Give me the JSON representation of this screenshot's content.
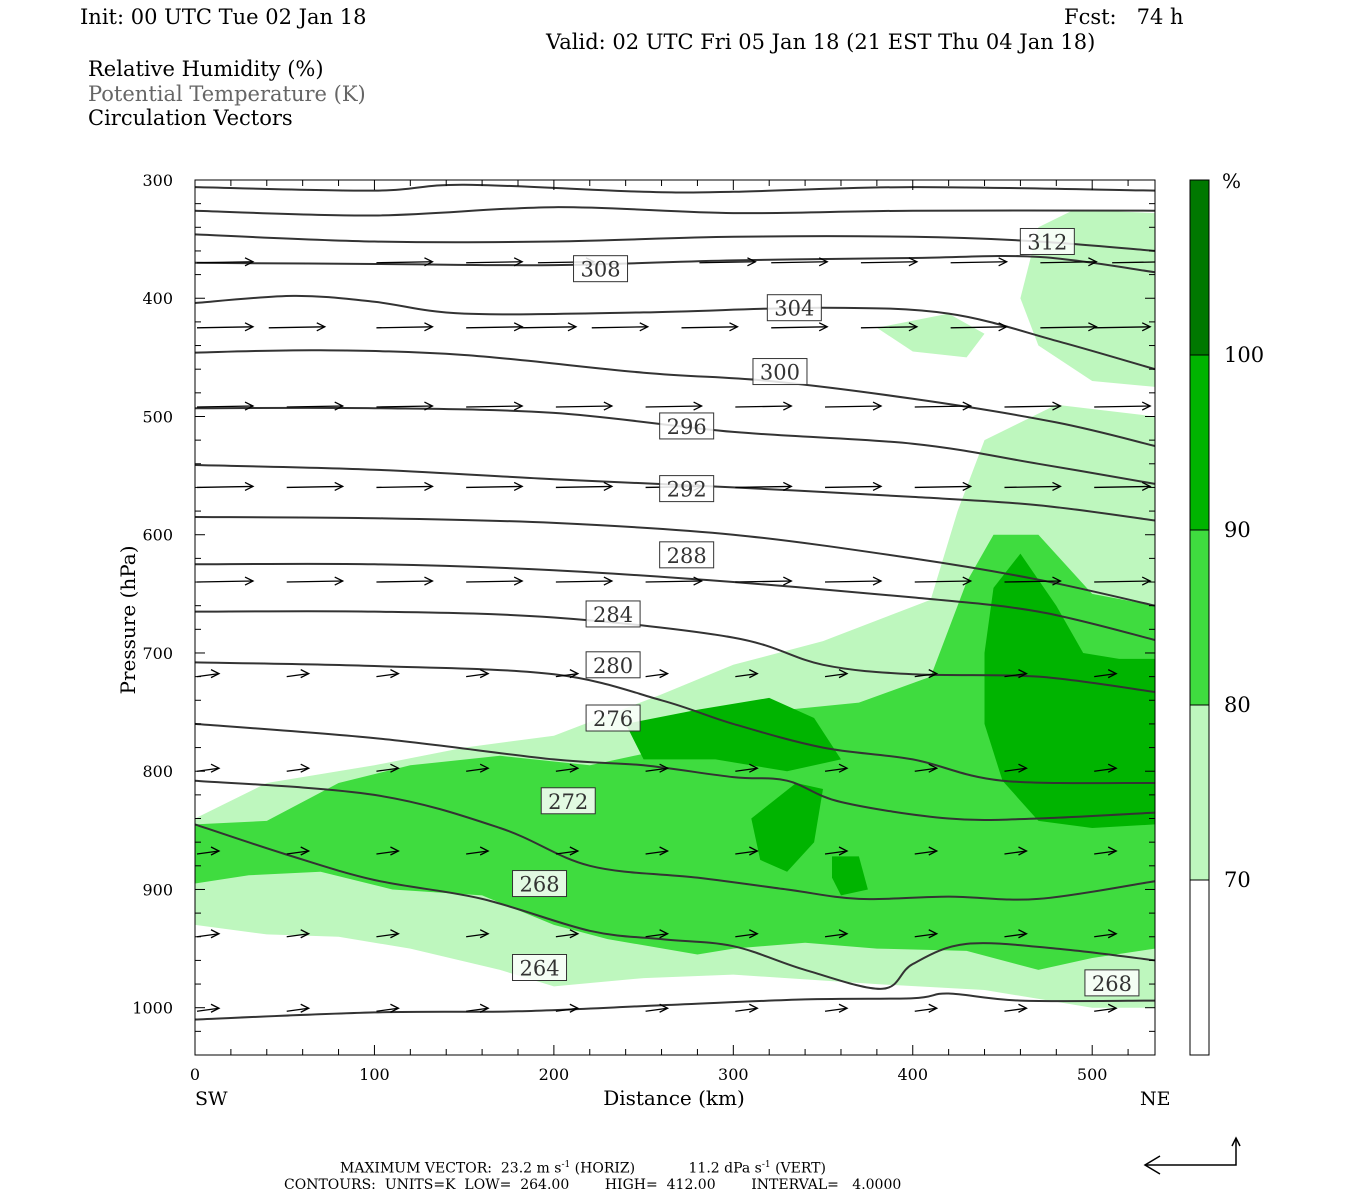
{
  "header": {
    "init": "Init: 00 UTC Tue 02 Jan 18",
    "fcst": "Fcst:   74 h",
    "valid": "Valid: 02 UTC Fri 05 Jan 18 (21 EST Thu 04 Jan 18)"
  },
  "legend": {
    "rh": "Relative Humidity (%)",
    "theta": "Potential Temperature (K)",
    "circ": "Circulation Vectors"
  },
  "colors": {
    "rh_70_80": "#bef7be",
    "rh_80_90": "#3fdc3f",
    "rh_90_100": "#00b400",
    "rh_100": "#007800",
    "contour": "#333333"
  },
  "footer": {
    "max_vector_label": "MAXIMUM VECTOR:",
    "max_vector_horiz_value": "23.2 m s",
    "max_vector_horiz_unit": "(HORIZ)",
    "max_vector_vert_value": "11.2 dPa s",
    "max_vector_vert_unit": "(VERT)",
    "exponent": "-1",
    "contours_label": "CONTOURS:",
    "units": "UNITS=K",
    "low_label": "LOW=",
    "low": "264.00",
    "high_label": "HIGH=",
    "high": "412.00",
    "interval_label": "INTERVAL=",
    "interval": "4.0000"
  },
  "chart_data": {
    "type": "contour",
    "xlabel": "Distance (km)",
    "ylabel": "Pressure (hPa)",
    "xlim": [
      0,
      535
    ],
    "ylim": [
      300,
      1040
    ],
    "x_ticks": [
      0,
      100,
      200,
      300,
      400,
      500
    ],
    "y_ticks": [
      300,
      400,
      500,
      600,
      700,
      800,
      900,
      1000
    ],
    "y_inverted": true,
    "x_end_labels": {
      "left": "SW",
      "right": "NE"
    },
    "colorbar": {
      "unit": "%",
      "levels": [
        70,
        80,
        90,
        100
      ]
    },
    "theta_contour_labels": [
      {
        "value": "312",
        "x": 475,
        "p": 352
      },
      {
        "value": "308",
        "x": 226,
        "p": 375
      },
      {
        "value": "304",
        "x": 334,
        "p": 408
      },
      {
        "value": "300",
        "x": 326,
        "p": 462
      },
      {
        "value": "296",
        "x": 274,
        "p": 508
      },
      {
        "value": "292",
        "x": 274,
        "p": 561
      },
      {
        "value": "288",
        "x": 274,
        "p": 617
      },
      {
        "value": "284",
        "x": 233,
        "p": 667
      },
      {
        "value": "280",
        "x": 233,
        "p": 710
      },
      {
        "value": "276",
        "x": 233,
        "p": 755
      },
      {
        "value": "272",
        "x": 208,
        "p": 825
      },
      {
        "value": "268",
        "x": 192,
        "p": 895
      },
      {
        "value": "264",
        "x": 192,
        "p": 966
      },
      {
        "value": "268",
        "x": 511,
        "p": 979
      }
    ],
    "theta_contours": [
      [
        [
          0,
          306
        ],
        [
          100,
          309
        ],
        [
          150,
          304
        ],
        [
          250,
          310
        ],
        [
          300,
          310
        ],
        [
          400,
          306
        ],
        [
          535,
          309
        ]
      ],
      [
        [
          0,
          326
        ],
        [
          100,
          330
        ],
        [
          200,
          323
        ],
        [
          300,
          328
        ],
        [
          400,
          326
        ],
        [
          535,
          326
        ]
      ],
      [
        [
          0,
          346
        ],
        [
          100,
          352
        ],
        [
          200,
          352
        ],
        [
          300,
          348
        ],
        [
          400,
          348
        ],
        [
          470,
          352
        ],
        [
          535,
          360
        ]
      ],
      [
        [
          0,
          370
        ],
        [
          100,
          371
        ],
        [
          200,
          372
        ],
        [
          300,
          368
        ],
        [
          400,
          366
        ],
        [
          470,
          365
        ],
        [
          535,
          378
        ]
      ],
      [
        [
          0,
          404
        ],
        [
          55,
          398
        ],
        [
          100,
          403
        ],
        [
          150,
          413
        ],
        [
          250,
          412
        ],
        [
          350,
          408
        ],
        [
          420,
          413
        ],
        [
          480,
          436
        ],
        [
          535,
          460
        ]
      ],
      [
        [
          0,
          446
        ],
        [
          70,
          444
        ],
        [
          150,
          448
        ],
        [
          250,
          463
        ],
        [
          320,
          470
        ],
        [
          400,
          485
        ],
        [
          480,
          505
        ],
        [
          535,
          525
        ]
      ],
      [
        [
          0,
          493
        ],
        [
          100,
          493
        ],
        [
          200,
          497
        ],
        [
          300,
          513
        ],
        [
          400,
          523
        ],
        [
          470,
          540
        ],
        [
          535,
          557
        ]
      ],
      [
        [
          0,
          541
        ],
        [
          100,
          545
        ],
        [
          200,
          553
        ],
        [
          300,
          560
        ],
        [
          400,
          568
        ],
        [
          470,
          575
        ],
        [
          535,
          588
        ]
      ],
      [
        [
          0,
          585
        ],
        [
          100,
          586
        ],
        [
          200,
          590
        ],
        [
          300,
          600
        ],
        [
          400,
          620
        ],
        [
          470,
          638
        ],
        [
          535,
          660
        ]
      ],
      [
        [
          0,
          625
        ],
        [
          100,
          625
        ],
        [
          200,
          630
        ],
        [
          300,
          640
        ],
        [
          400,
          653
        ],
        [
          470,
          665
        ],
        [
          535,
          689
        ]
      ],
      [
        [
          0,
          665
        ],
        [
          100,
          665
        ],
        [
          200,
          670
        ],
        [
          300,
          687
        ],
        [
          350,
          710
        ],
        [
          400,
          718
        ],
        [
          470,
          720
        ],
        [
          535,
          733
        ]
      ],
      [
        [
          0,
          708
        ],
        [
          100,
          711
        ],
        [
          200,
          718
        ],
        [
          260,
          740
        ],
        [
          300,
          760
        ],
        [
          350,
          780
        ],
        [
          400,
          790
        ],
        [
          450,
          808
        ],
        [
          535,
          810
        ]
      ],
      [
        [
          0,
          760
        ],
        [
          100,
          772
        ],
        [
          200,
          790
        ],
        [
          250,
          795
        ],
        [
          300,
          805
        ],
        [
          330,
          808
        ],
        [
          360,
          826
        ],
        [
          420,
          840
        ],
        [
          470,
          840
        ],
        [
          535,
          835
        ]
      ],
      [
        [
          0,
          808
        ],
        [
          100,
          820
        ],
        [
          170,
          848
        ],
        [
          220,
          880
        ],
        [
          280,
          890
        ],
        [
          330,
          900
        ],
        [
          370,
          908
        ],
        [
          420,
          906
        ],
        [
          470,
          908
        ],
        [
          535,
          893
        ]
      ],
      [
        [
          0,
          845
        ],
        [
          50,
          870
        ],
        [
          100,
          892
        ],
        [
          160,
          908
        ],
        [
          220,
          935
        ],
        [
          260,
          942
        ],
        [
          300,
          948
        ],
        [
          340,
          968
        ],
        [
          383,
          984
        ],
        [
          400,
          963
        ],
        [
          430,
          946
        ],
        [
          480,
          950
        ],
        [
          535,
          960
        ]
      ],
      [
        [
          0,
          1010
        ],
        [
          100,
          1004
        ],
        [
          180,
          1003
        ],
        [
          260,
          998
        ],
        [
          340,
          993
        ],
        [
          400,
          992
        ],
        [
          420,
          988
        ],
        [
          460,
          994
        ],
        [
          535,
          994
        ]
      ]
    ],
    "vectors": [
      {
        "p": 370,
        "x": [
          0,
          100,
          150,
          190,
          280,
          320,
          370,
          420,
          470,
          510
        ]
      },
      {
        "p": 425,
        "x": [
          0,
          40,
          100,
          150,
          180,
          220,
          270,
          320,
          370,
          420,
          470,
          500
        ]
      },
      {
        "p": 492,
        "x": [
          0,
          50,
          100,
          150,
          200,
          250,
          300,
          350,
          400,
          450,
          500
        ]
      },
      {
        "p": 560,
        "x": [
          0,
          50,
          100,
          150,
          200,
          250,
          300,
          350,
          400,
          450,
          500
        ]
      },
      {
        "p": 640,
        "x": [
          0,
          50,
          100,
          150,
          200,
          250,
          300,
          350,
          400,
          450,
          500
        ]
      },
      {
        "p": 720,
        "x": [
          0,
          50,
          100,
          150,
          200,
          250,
          300,
          350,
          400,
          450,
          500
        ]
      },
      {
        "p": 800,
        "x": [
          0,
          50,
          100,
          150,
          200,
          250,
          300,
          350,
          400,
          450,
          500
        ]
      },
      {
        "p": 870,
        "x": [
          0,
          50,
          100,
          150,
          200,
          250,
          300,
          350,
          400,
          450,
          500
        ]
      },
      {
        "p": 940,
        "x": [
          0,
          50,
          100,
          150,
          200,
          250,
          300,
          350,
          400,
          450,
          500
        ]
      },
      {
        "p": 1003,
        "x": [
          0,
          50,
          100,
          150,
          200,
          250,
          300,
          350,
          400,
          450,
          500
        ]
      }
    ],
    "rh_regions": [
      {
        "level": 70,
        "points": [
          [
            0,
            840
          ],
          [
            40,
            810
          ],
          [
            100,
            795
          ],
          [
            150,
            780
          ],
          [
            200,
            770
          ],
          [
            260,
            735
          ],
          [
            300,
            710
          ],
          [
            350,
            690
          ],
          [
            410,
            655
          ],
          [
            425,
            580
          ],
          [
            440,
            520
          ],
          [
            480,
            490
          ],
          [
            535,
            500
          ],
          [
            535,
            1000
          ],
          [
            500,
            1000
          ],
          [
            440,
            985
          ],
          [
            380,
            980
          ],
          [
            300,
            972
          ],
          [
            250,
            975
          ],
          [
            200,
            982
          ],
          [
            170,
            968
          ],
          [
            120,
            950
          ],
          [
            80,
            940
          ],
          [
            40,
            938
          ],
          [
            0,
            930
          ]
        ]
      },
      {
        "level": 70,
        "points": [
          [
            470,
            340
          ],
          [
            490,
            325
          ],
          [
            535,
            328
          ],
          [
            535,
            475
          ],
          [
            500,
            470
          ],
          [
            470,
            440
          ],
          [
            460,
            400
          ]
        ]
      },
      {
        "level": 70,
        "points": [
          [
            380,
            425
          ],
          [
            420,
            413
          ],
          [
            440,
            430
          ],
          [
            430,
            450
          ],
          [
            400,
            445
          ]
        ]
      },
      {
        "level": 80,
        "points": [
          [
            0,
            845
          ],
          [
            40,
            842
          ],
          [
            80,
            810
          ],
          [
            120,
            795
          ],
          [
            170,
            787
          ],
          [
            220,
            795
          ],
          [
            260,
            782
          ],
          [
            290,
            757
          ],
          [
            330,
            748
          ],
          [
            370,
            742
          ],
          [
            410,
            720
          ],
          [
            430,
            640
          ],
          [
            445,
            600
          ],
          [
            470,
            600
          ],
          [
            500,
            650
          ],
          [
            535,
            660
          ],
          [
            535,
            950
          ],
          [
            500,
            958
          ],
          [
            470,
            968
          ],
          [
            430,
            952
          ],
          [
            380,
            950
          ],
          [
            340,
            945
          ],
          [
            300,
            950
          ],
          [
            280,
            955
          ],
          [
            230,
            942
          ],
          [
            200,
            930
          ],
          [
            160,
            905
          ],
          [
            110,
            900
          ],
          [
            70,
            885
          ],
          [
            30,
            888
          ],
          [
            0,
            895
          ]
        ]
      },
      {
        "level": 90,
        "points": [
          [
            240,
            760
          ],
          [
            280,
            748
          ],
          [
            320,
            738
          ],
          [
            345,
            755
          ],
          [
            360,
            790
          ],
          [
            330,
            800
          ],
          [
            290,
            790
          ],
          [
            250,
            790
          ]
        ]
      },
      {
        "level": 90,
        "points": [
          [
            440,
            700
          ],
          [
            445,
            645
          ],
          [
            460,
            616
          ],
          [
            480,
            660
          ],
          [
            495,
            700
          ],
          [
            515,
            705
          ],
          [
            535,
            705
          ],
          [
            535,
            845
          ],
          [
            500,
            848
          ],
          [
            470,
            842
          ],
          [
            450,
            808
          ],
          [
            440,
            760
          ]
        ]
      },
      {
        "level": 90,
        "points": [
          [
            310,
            840
          ],
          [
            335,
            810
          ],
          [
            350,
            815
          ],
          [
            345,
            860
          ],
          [
            330,
            885
          ],
          [
            315,
            875
          ]
        ]
      },
      {
        "level": 90,
        "points": [
          [
            355,
            872
          ],
          [
            370,
            872
          ],
          [
            375,
            900
          ],
          [
            360,
            905
          ],
          [
            355,
            890
          ]
        ]
      }
    ]
  }
}
